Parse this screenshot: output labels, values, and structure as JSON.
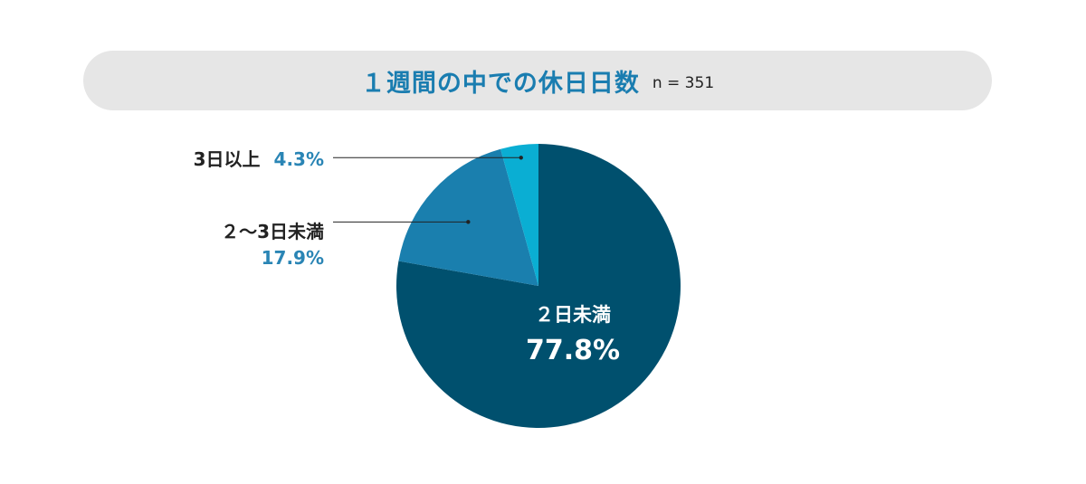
{
  "title": {
    "main": "１週間の中での休日日数",
    "n_label": "n = 351"
  },
  "colors": {
    "title_text": "#1a7db0",
    "title_bg": "#e6e6e6",
    "label_text": "#222222",
    "percent_text": "#2a85b5"
  },
  "chart_data": {
    "type": "pie",
    "start_angle_deg": 0,
    "direction": "clockwise",
    "slices": [
      {
        "label": "２日未満",
        "value": 77.8,
        "percent_label": "77.8%",
        "color": "#00506e"
      },
      {
        "label": "２〜3日未満",
        "value": 17.9,
        "percent_label": "17.9%",
        "color": "#1a7fae"
      },
      {
        "label": "3日以上",
        "value": 4.3,
        "percent_label": "4.3%",
        "color": "#0aaed3"
      }
    ]
  }
}
